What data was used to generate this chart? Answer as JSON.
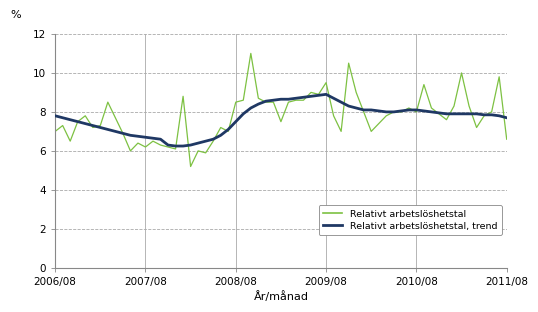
{
  "title": "",
  "ylabel": "%",
  "xlabel": "År/månad",
  "ylim": [
    0,
    12
  ],
  "yticks": [
    0,
    2,
    4,
    6,
    8,
    10,
    12
  ],
  "xtick_labels": [
    "2006/08",
    "2007/08",
    "2008/08",
    "2009/08",
    "2010/08",
    "2011/08"
  ],
  "line_color": "#7dc142",
  "trend_color": "#1f3864",
  "legend_label1": "Relativt arbetslöshetstal",
  "legend_label2": "Relativt arbetslöshetstal, trend",
  "background_color": "#ffffff",
  "grid_color": "#aaaaaa",
  "raw_data": [
    7.0,
    7.3,
    6.5,
    7.5,
    7.8,
    7.2,
    7.3,
    8.5,
    7.7,
    6.9,
    6.0,
    6.4,
    6.2,
    6.5,
    6.3,
    6.2,
    6.1,
    8.8,
    5.2,
    6.0,
    5.9,
    6.5,
    7.2,
    7.0,
    8.5,
    8.6,
    11.0,
    8.7,
    8.5,
    8.5,
    7.5,
    8.5,
    8.6,
    8.6,
    9.0,
    8.9,
    9.5,
    7.8,
    7.0,
    10.5,
    9.0,
    8.0,
    7.0,
    7.4,
    7.8,
    8.0,
    8.0,
    8.2,
    8.0,
    9.4,
    8.2,
    7.9,
    7.6,
    8.3,
    10.0,
    8.3,
    7.2,
    7.8,
    8.0,
    9.8,
    6.6
  ],
  "trend_data": [
    7.8,
    7.7,
    7.6,
    7.5,
    7.4,
    7.3,
    7.2,
    7.1,
    7.0,
    6.9,
    6.8,
    6.75,
    6.7,
    6.65,
    6.6,
    6.3,
    6.25,
    6.25,
    6.3,
    6.4,
    6.5,
    6.6,
    6.8,
    7.1,
    7.5,
    7.9,
    8.2,
    8.4,
    8.55,
    8.6,
    8.65,
    8.65,
    8.7,
    8.75,
    8.8,
    8.85,
    8.9,
    8.7,
    8.5,
    8.3,
    8.2,
    8.1,
    8.1,
    8.05,
    8.0,
    8.0,
    8.05,
    8.1,
    8.1,
    8.05,
    8.0,
    7.95,
    7.9,
    7.9,
    7.9,
    7.9,
    7.9,
    7.85,
    7.85,
    7.8,
    7.7
  ]
}
